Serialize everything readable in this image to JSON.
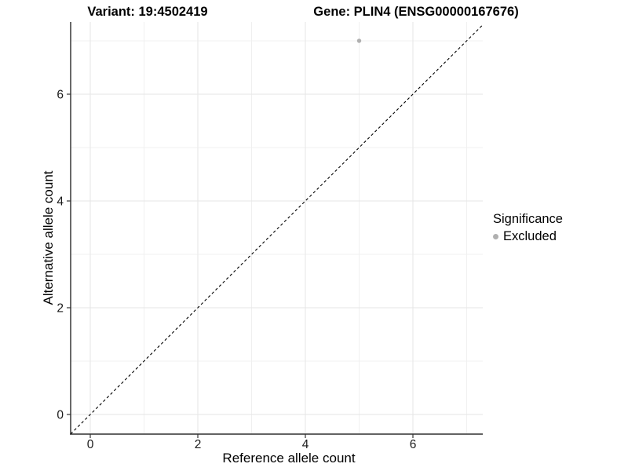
{
  "titles": {
    "variant": "Variant: 19:4502419",
    "gene": "Gene: PLIN4 (ENSG00000167676)"
  },
  "chart_data": {
    "type": "scatter",
    "xlabel": "Reference allele count",
    "ylabel": "Alternative allele count",
    "xlim": [
      0,
      7
    ],
    "ylim": [
      0,
      7
    ],
    "xticks": [
      0,
      2,
      4,
      6
    ],
    "yticks": [
      0,
      2,
      4,
      6
    ],
    "grid_minor_x": [
      1,
      3,
      5,
      7
    ],
    "grid_minor_y": [
      1,
      3,
      5,
      7
    ],
    "grid": "on",
    "points": [
      {
        "x": 5,
        "y": 7,
        "series": "Excluded"
      }
    ],
    "reference_line": {
      "slope": 1,
      "intercept": 0,
      "style": "dashed",
      "color": "#000000"
    },
    "legend": {
      "title": "Significance",
      "position": "right",
      "items": [
        {
          "label": "Excluded",
          "color": "#b0b0b0"
        }
      ]
    }
  },
  "colors": {
    "background": "#ffffff",
    "grid_major": "#e6e6e6",
    "grid_minor": "#f0f0f0",
    "axis_line": "#4d4d4d",
    "tick_mark": "#333333",
    "text": "#000000",
    "excluded_point": "#b0b0b0"
  }
}
